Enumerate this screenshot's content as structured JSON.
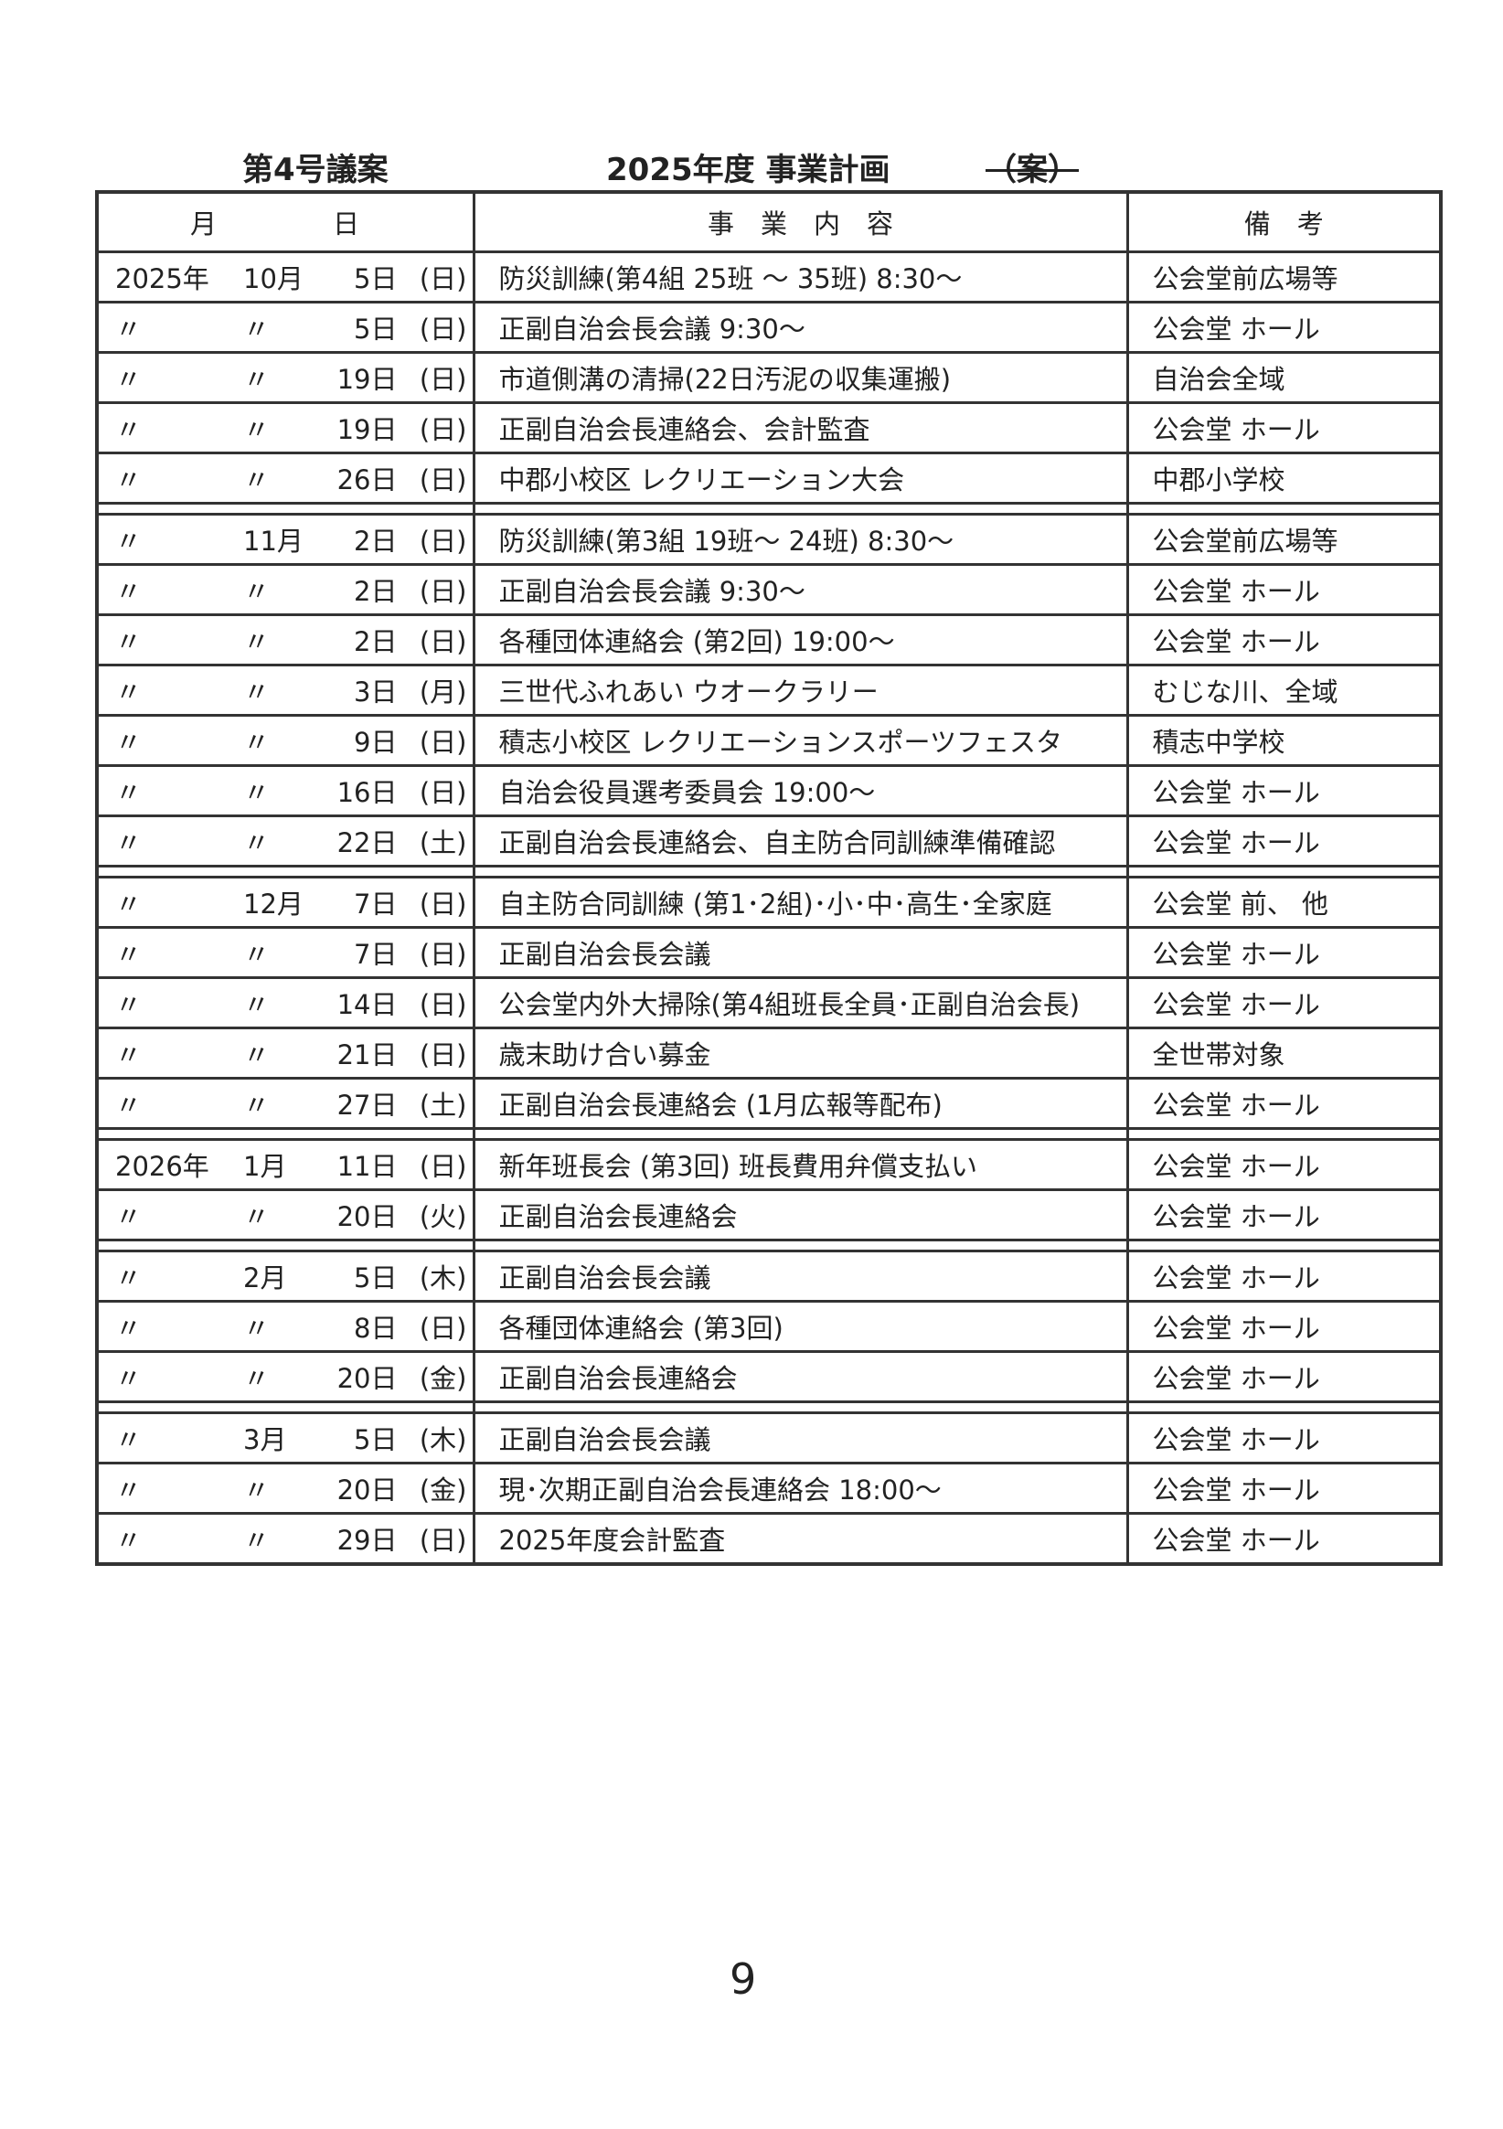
{
  "header": {
    "agenda_number": "第4号議案",
    "title": "2025年度  事業計画",
    "draft_mark": "（案）"
  },
  "table": {
    "columns": {
      "date_month": "月",
      "date_day": "日",
      "content": "事　業　内　容",
      "note": "備　考"
    },
    "groups": [
      [
        {
          "year": "2025年",
          "month": "10月",
          "day": "5日",
          "weekday": "(日)",
          "content": "防災訓練(第4組  25班  ～  35班)  8:30～",
          "note": "公会堂前広場等"
        },
        {
          "year": "〃",
          "month": "〃",
          "day": "5日",
          "weekday": "(日)",
          "content": "正副自治会長会議  9:30～",
          "note": "公会堂  ホール"
        },
        {
          "year": "〃",
          "month": "〃",
          "day": "19日",
          "weekday": "(日)",
          "content": "市道側溝の清掃(22日汚泥の収集運搬)",
          "note": "自治会全域"
        },
        {
          "year": "〃",
          "month": "〃",
          "day": "19日",
          "weekday": "(日)",
          "content": "正副自治会長連絡会、会計監査",
          "note": "公会堂  ホール"
        },
        {
          "year": "〃",
          "month": "〃",
          "day": "26日",
          "weekday": "(日)",
          "content": "中郡小校区  レクリエーション大会",
          "note": "中郡小学校"
        }
      ],
      [
        {
          "year": "〃",
          "month": "11月",
          "day": "2日",
          "weekday": "(日)",
          "content": "防災訓練(第3組  19班～  24班)  8:30～",
          "note": "公会堂前広場等"
        },
        {
          "year": "〃",
          "month": "〃",
          "day": "2日",
          "weekday": "(日)",
          "content": "正副自治会長会議  9:30～",
          "note": "公会堂  ホール"
        },
        {
          "year": "〃",
          "month": "〃",
          "day": "2日",
          "weekday": "(日)",
          "content": "各種団体連絡会  (第2回)  19:00～",
          "note": "公会堂  ホール"
        },
        {
          "year": "〃",
          "month": "〃",
          "day": "3日",
          "weekday": "(月)",
          "content": "三世代ふれあい  ウオークラリー",
          "note": "むじな川、全域"
        },
        {
          "year": "〃",
          "month": "〃",
          "day": "9日",
          "weekday": "(日)",
          "content": "積志小校区  レクリエーションスポーツフェスタ",
          "note": "積志中学校"
        },
        {
          "year": "〃",
          "month": "〃",
          "day": "16日",
          "weekday": "(日)",
          "content": "自治会役員選考委員会  19:00～",
          "note": "公会堂  ホール"
        },
        {
          "year": "〃",
          "month": "〃",
          "day": "22日",
          "weekday": "(土)",
          "content": "正副自治会長連絡会、自主防合同訓練準備確認",
          "note": "公会堂  ホール"
        }
      ],
      [
        {
          "year": "〃",
          "month": "12月",
          "day": "7日",
          "weekday": "(日)",
          "content": "自主防合同訓練 (第1･2組)･小･中･高生･全家庭",
          "note": "公会堂  前、 他"
        },
        {
          "year": "〃",
          "month": "〃",
          "day": "7日",
          "weekday": "(日)",
          "content": "正副自治会長会議",
          "note": "公会堂  ホール"
        },
        {
          "year": "〃",
          "month": "〃",
          "day": "14日",
          "weekday": "(日)",
          "content": "公会堂内外大掃除(第4組班長全員･正副自治会長)",
          "note": "公会堂  ホール"
        },
        {
          "year": "〃",
          "month": "〃",
          "day": "21日",
          "weekday": "(日)",
          "content": "歳末助け合い募金",
          "note": "全世帯対象"
        },
        {
          "year": "〃",
          "month": "〃",
          "day": "27日",
          "weekday": "(土)",
          "content": "正副自治会長連絡会  (1月広報等配布)",
          "note": "公会堂  ホール"
        }
      ],
      [
        {
          "year": "2026年",
          "month": "1月",
          "day": "11日",
          "weekday": "(日)",
          "content": "新年班長会  (第3回)        班長費用弁償支払い",
          "note": "公会堂  ホール"
        },
        {
          "year": "〃",
          "month": "〃",
          "day": "20日",
          "weekday": "(火)",
          "content": "正副自治会長連絡会",
          "note": "公会堂  ホール"
        }
      ],
      [
        {
          "year": "〃",
          "month": "2月",
          "day": "5日",
          "weekday": "(木)",
          "content": "正副自治会長会議",
          "note": "公会堂  ホール"
        },
        {
          "year": "〃",
          "month": "〃",
          "day": "8日",
          "weekday": "(日)",
          "content": "各種団体連絡会  (第3回)",
          "note": "公会堂  ホール"
        },
        {
          "year": "〃",
          "month": "〃",
          "day": "20日",
          "weekday": "(金)",
          "content": "正副自治会長連絡会",
          "note": "公会堂  ホール"
        }
      ],
      [
        {
          "year": "〃",
          "month": "3月",
          "day": "5日",
          "weekday": "(木)",
          "content": "正副自治会長会議",
          "note": "公会堂  ホール"
        },
        {
          "year": "〃",
          "month": "〃",
          "day": "20日",
          "weekday": "(金)",
          "content": "現･次期正副自治会長連絡会  18:00～",
          "note": "公会堂  ホール"
        },
        {
          "year": "〃",
          "month": "〃",
          "day": "29日",
          "weekday": "(日)",
          "content": "2025年度会計監査",
          "note": "公会堂  ホール"
        }
      ]
    ]
  },
  "footer": {
    "page_number": "9"
  }
}
